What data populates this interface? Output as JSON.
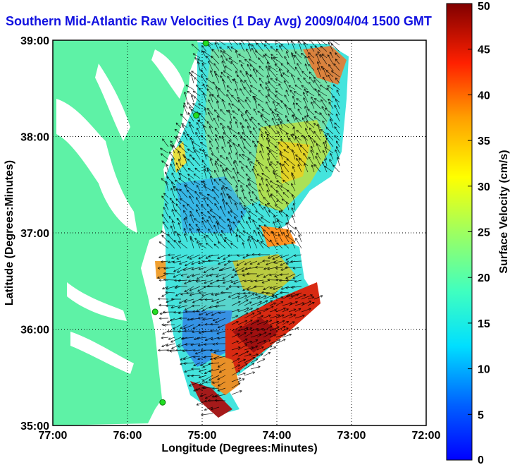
{
  "title": "Southern Mid-Atlantic Raw Velocities (1 Day Avg) 2009/04/04 1500 GMT",
  "xaxis": {
    "label": "Longitude (Degrees:Minutes)",
    "ticks": [
      "77:00",
      "76:00",
      "75:00",
      "74:00",
      "73:00",
      "72:00"
    ],
    "range": [
      -77,
      -72
    ]
  },
  "yaxis": {
    "label": "Latitude (Degrees:Minutes)",
    "ticks": [
      "35:00",
      "36:00",
      "37:00",
      "38:00",
      "39:00"
    ],
    "range": [
      35,
      39
    ]
  },
  "colorbar": {
    "label": "Surface Velocity (cm/s)",
    "ticks": [
      "0",
      "5",
      "10",
      "15",
      "20",
      "25",
      "30",
      "35",
      "40",
      "45",
      "50"
    ],
    "range": [
      0,
      50
    ]
  },
  "colors": {
    "land": "#5ef2a6",
    "water": "#ffffff",
    "title": "#1010e0",
    "grid": "#000000"
  },
  "stations": [
    {
      "lon": -74.95,
      "lat": 38.97
    },
    {
      "lon": -75.08,
      "lat": 38.22
    },
    {
      "lon": -75.63,
      "lat": 36.18
    },
    {
      "lon": -75.53,
      "lat": 35.24
    }
  ]
}
